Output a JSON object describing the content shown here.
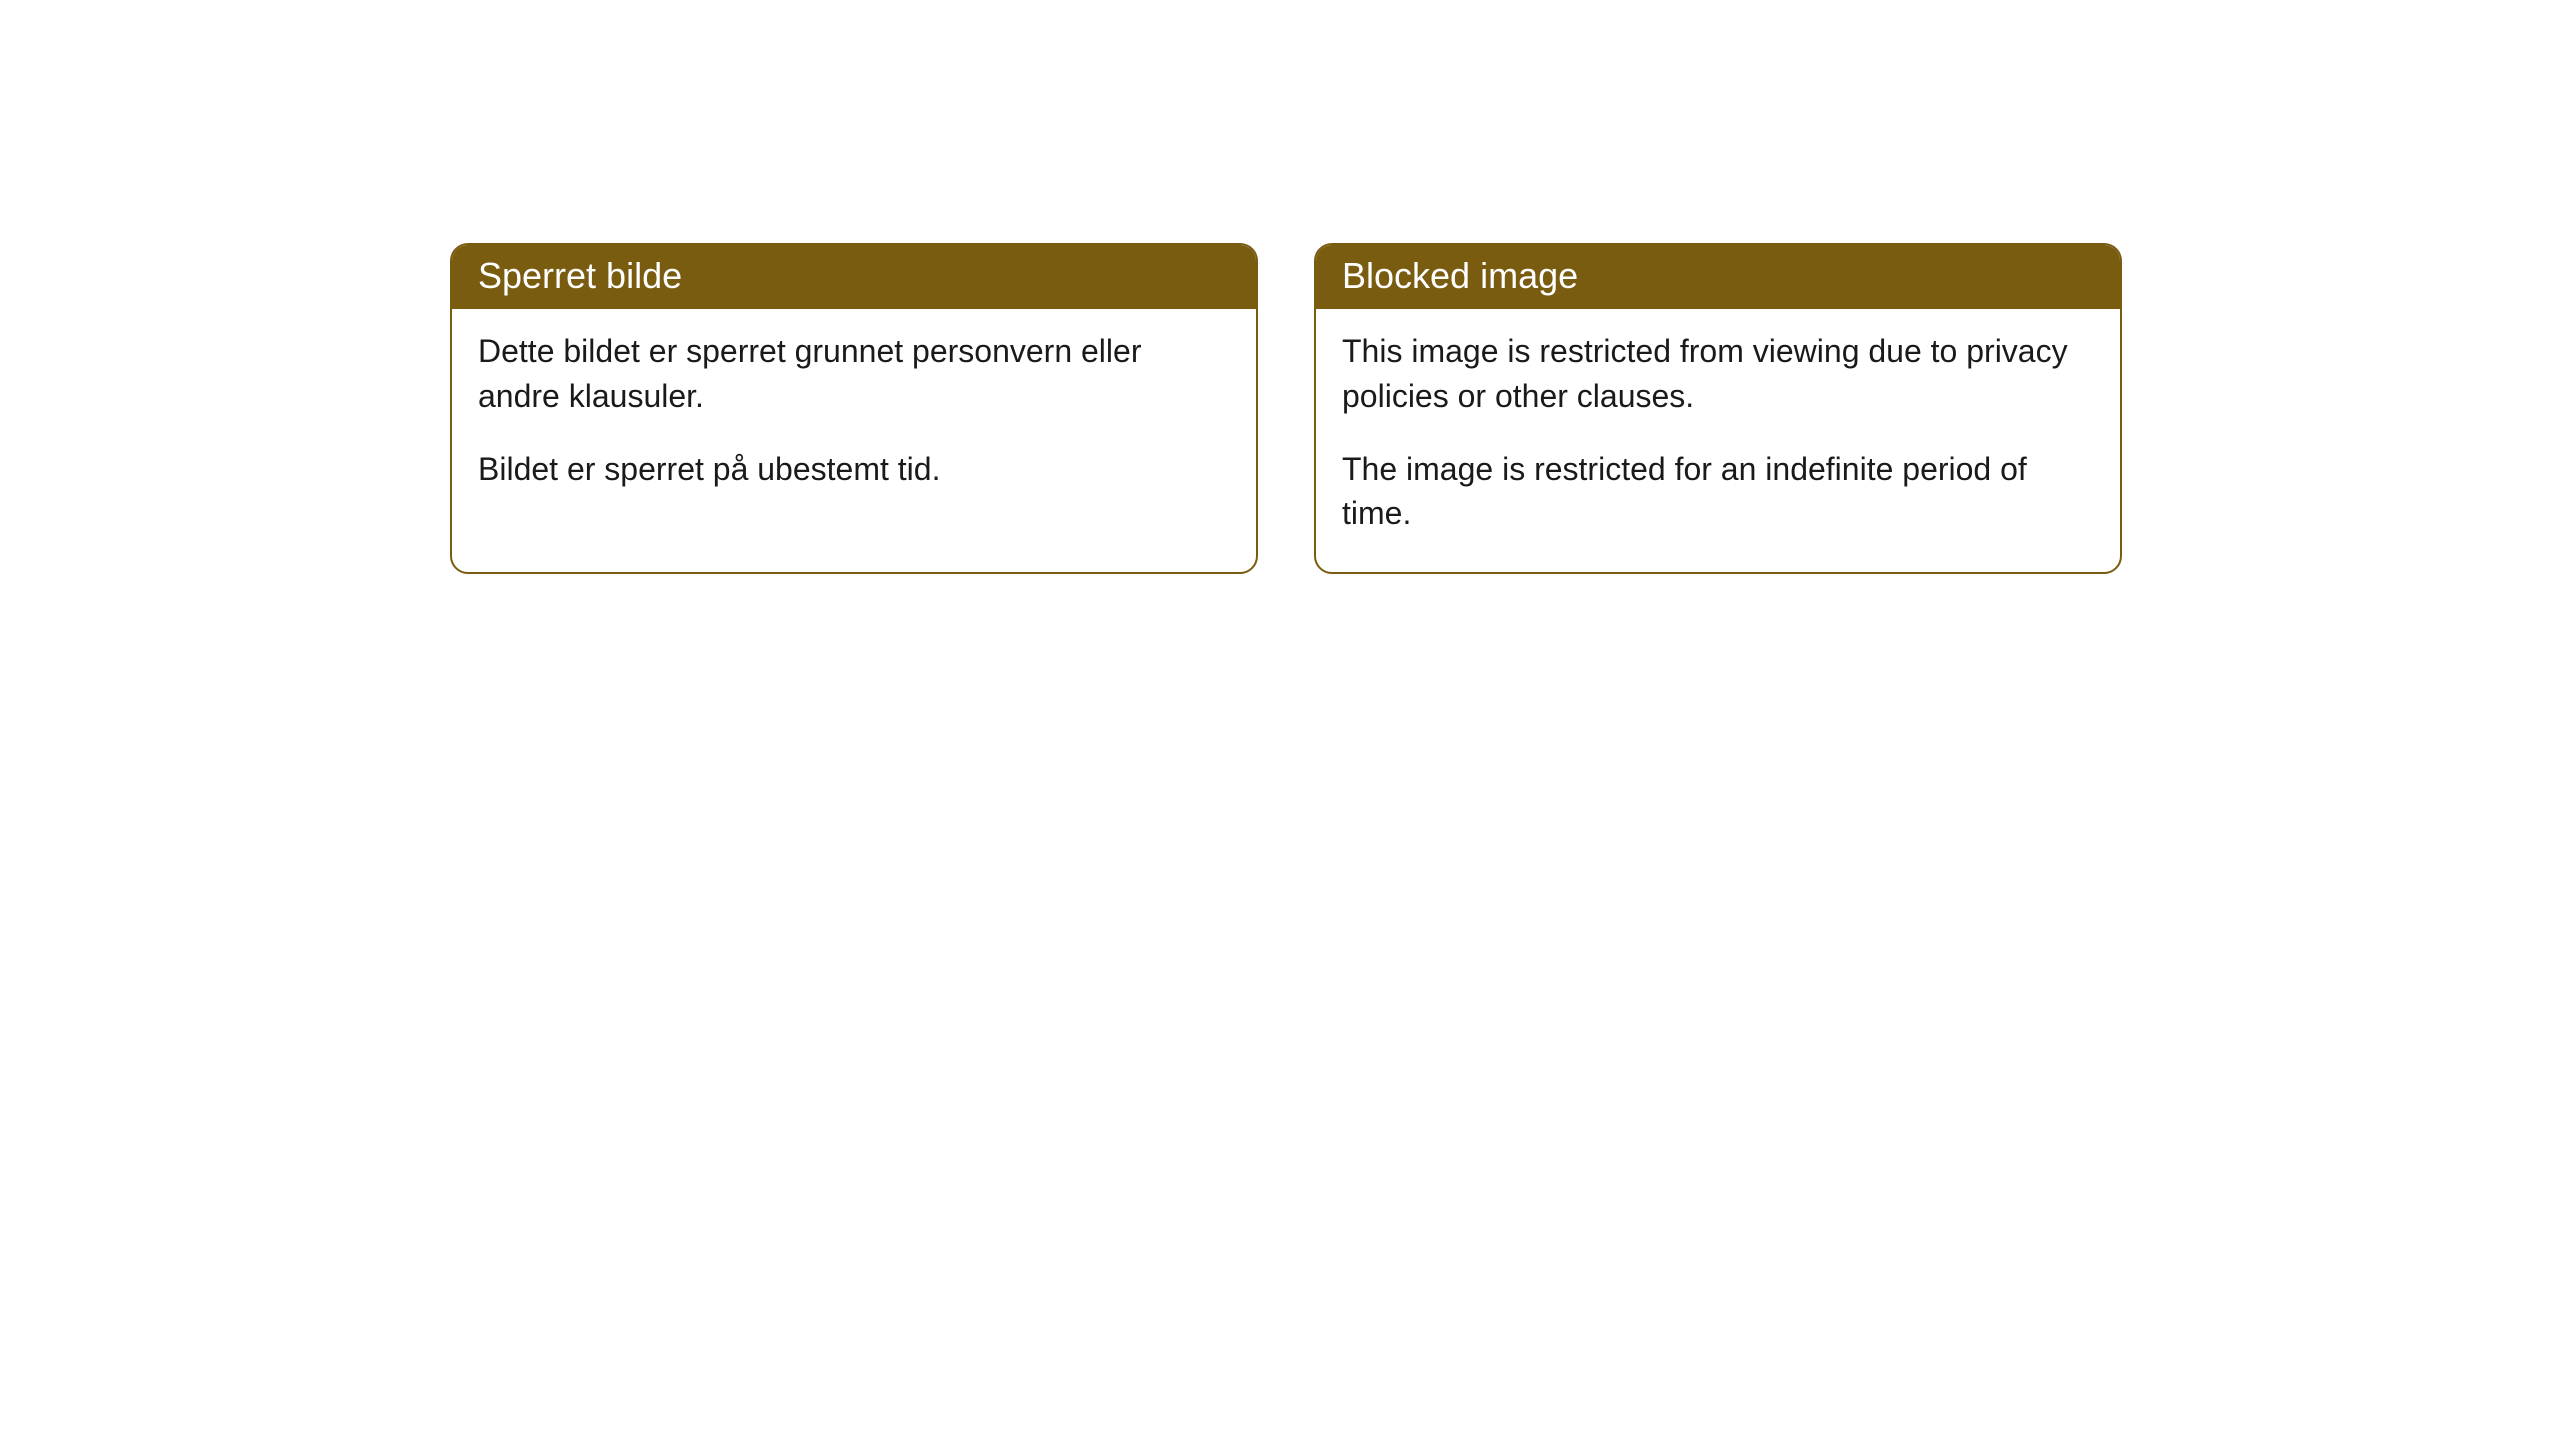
{
  "cards": [
    {
      "title": "Sperret bilde",
      "paragraph1": "Dette bildet er sperret grunnet personvern eller andre klausuler.",
      "paragraph2": "Bildet er sperret på ubestemt tid."
    },
    {
      "title": "Blocked image",
      "paragraph1": "This image is restricted from viewing due to privacy policies or other clauses.",
      "paragraph2": "The image is restricted for an indefinite period of time."
    }
  ],
  "style": {
    "header_background": "#7a5c10",
    "header_text_color": "#ffffff",
    "border_color": "#7a5c10",
    "body_background": "#ffffff",
    "body_text_color": "#1a1a1a",
    "border_radius": 18,
    "title_fontsize": 36,
    "body_fontsize": 32
  }
}
